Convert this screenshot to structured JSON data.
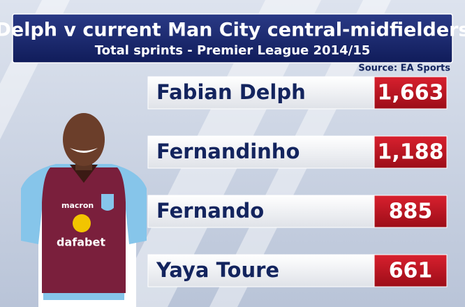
{
  "header": {
    "title": "Delph v current Man City central-midfielders",
    "subtitle": "Total sprints - Premier League 2014/15"
  },
  "source": "Source: EA Sports",
  "rows": [
    {
      "name": "Fabian Delph",
      "value": "1,663"
    },
    {
      "name": "Fernandinho",
      "value": "1,188"
    },
    {
      "name": "Fernando",
      "value": "885"
    },
    {
      "name": "Yaya Toure",
      "value": "661"
    }
  ],
  "photo": {
    "kit_maker": "macron",
    "sponsor": "dafabet"
  }
}
